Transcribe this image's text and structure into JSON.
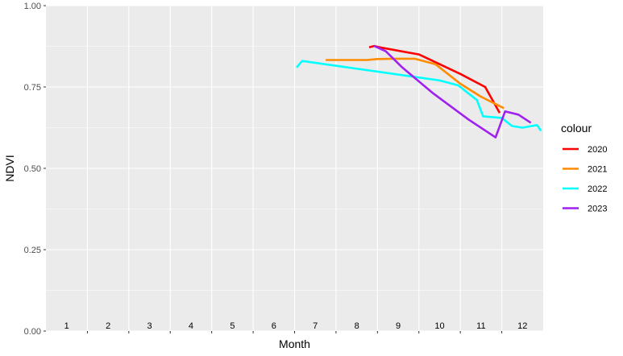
{
  "chart_data": {
    "type": "line",
    "xlabel": "Month",
    "ylabel": "NDVI",
    "xlim": [
      0,
      12
    ],
    "ylim": [
      0,
      1
    ],
    "x_tick_labels": [
      "1",
      "2",
      "3",
      "4",
      "5",
      "6",
      "7",
      "8",
      "9",
      "10",
      "11",
      "12"
    ],
    "y_ticks": [
      0,
      0.25,
      0.5,
      0.75,
      1
    ],
    "y_tick_labels": [
      "0.00",
      "0.25",
      "0.50",
      "0.75",
      "1.00"
    ],
    "grid": true,
    "legend": {
      "title": "colour",
      "position": "right"
    },
    "series": [
      {
        "name": "2020",
        "color": "#FF0000",
        "x": [
          7.8,
          7.92,
          8.05,
          9.0,
          10.0,
          10.6,
          10.95
        ],
        "y": [
          0.872,
          0.876,
          0.872,
          0.85,
          0.79,
          0.75,
          0.67
        ]
      },
      {
        "name": "2021",
        "color": "#FF8C00",
        "x": [
          6.75,
          7.0,
          7.75,
          8.0,
          8.4,
          8.9,
          9.4,
          10.0,
          10.5,
          11.05
        ],
        "y": [
          0.833,
          0.833,
          0.833,
          0.836,
          0.837,
          0.837,
          0.82,
          0.76,
          0.72,
          0.685
        ]
      },
      {
        "name": "2022",
        "color": "#00FFFF",
        "x": [
          6.05,
          6.18,
          9.5,
          9.95,
          10.4,
          10.55,
          11.0,
          11.25,
          11.5,
          11.85,
          11.95
        ],
        "y": [
          0.81,
          0.83,
          0.77,
          0.755,
          0.71,
          0.66,
          0.655,
          0.63,
          0.625,
          0.633,
          0.615
        ]
      },
      {
        "name": "2023",
        "color": "#A020F0",
        "x": [
          7.92,
          8.2,
          8.6,
          9.35,
          10.2,
          10.85,
          11.08,
          11.4,
          11.7
        ],
        "y": [
          0.876,
          0.86,
          0.81,
          0.73,
          0.65,
          0.595,
          0.675,
          0.665,
          0.64
        ]
      }
    ]
  }
}
